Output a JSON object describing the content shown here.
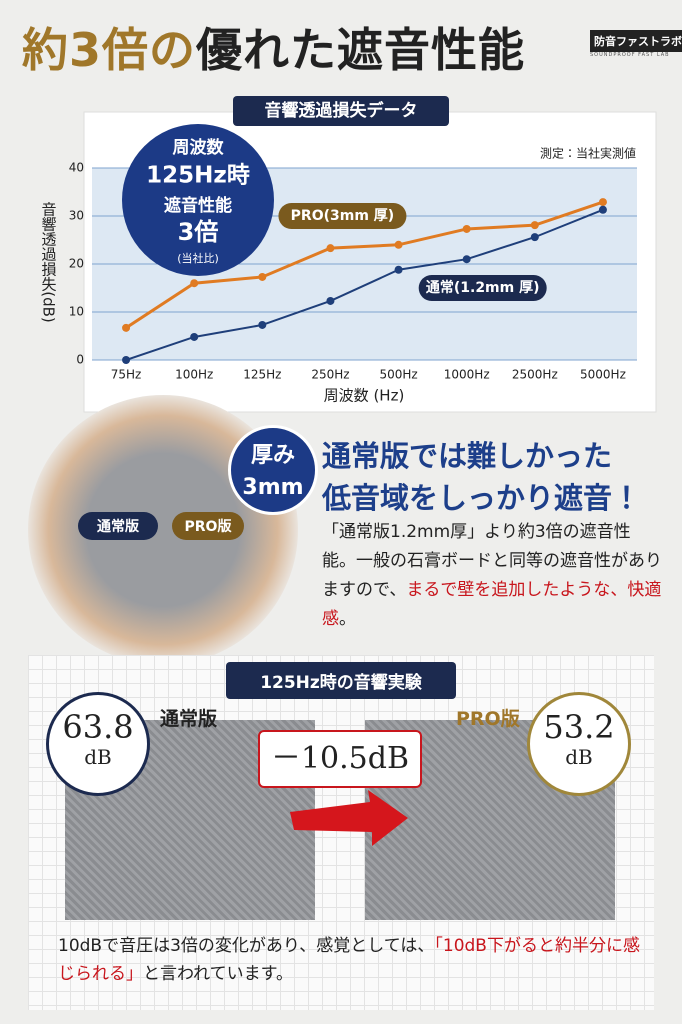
{
  "header": {
    "title": [
      "約3倍の",
      "優れた遮音性能"
    ],
    "logo": "防音ファストラボ",
    "logo_sub": "SOUNDPROOF FAST LAB"
  },
  "chart_data": {
    "type": "line",
    "title": "音響透過損失データ",
    "note": "測定：当社実測値",
    "annotation": [
      "周波数",
      "125Hz時",
      "遮音性能",
      "3倍",
      "(当社比)"
    ],
    "xlabel": "周波数 (Hz)",
    "ylabel": "音響透過損失(dB)",
    "categories": [
      "75Hz",
      "100Hz",
      "125Hz",
      "250Hz",
      "500Hz",
      "1000Hz",
      "2500Hz",
      "5000Hz"
    ],
    "series": [
      {
        "name": "PRO(3mm 厚)",
        "color": "#e07b22",
        "values": [
          6.7,
          16.0,
          17.3,
          23.3,
          24.0,
          27.3,
          28.1,
          32.9
        ]
      },
      {
        "name": "通常(1.2mm 厚)",
        "color": "#1f3f7a",
        "values": [
          0,
          4.8,
          7.3,
          12.3,
          18.8,
          21.0,
          25.6,
          31.3
        ]
      }
    ],
    "ylim": [
      0,
      40
    ],
    "yticks": [
      0,
      10,
      20,
      30,
      40
    ],
    "grid": true
  },
  "middle": {
    "badge": [
      "厚み",
      "3mm"
    ],
    "photo_labels": [
      "通常版",
      "PRO版"
    ],
    "heading": [
      "通常版では難しかった",
      "低音域をしっかり遮音！"
    ],
    "body": [
      "「通常版1.2mm厚」より約3倍の遮音性能。一般の石膏ボードと同等の遮音性がありますので、",
      "まるで壁を追加したような、快適感",
      "。"
    ]
  },
  "experiment": {
    "title": "125Hz時の音響実験",
    "left": {
      "label": "通常版",
      "value": "63.8",
      "unit": "dB"
    },
    "right": {
      "label": "PRO版",
      "value": "53.2",
      "unit": "dB"
    },
    "difference": "－10.5dB",
    "footer": [
      "10dBで音圧は3倍の変化があり、感覚としては、",
      "「10dB下がると約半分に感じられる」",
      "と言われています。"
    ]
  }
}
